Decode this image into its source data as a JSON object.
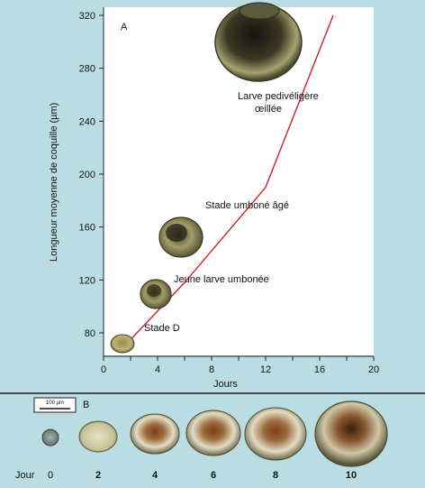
{
  "panel_a": {
    "label": "A",
    "chart_data": {
      "type": "line",
      "xlabel": "Jours",
      "ylabel": "Longueur moyenne de coquille (µm)",
      "xlim": [
        0,
        20
      ],
      "ylim": [
        70,
        320
      ],
      "xticks": [
        0,
        2,
        4,
        6,
        8,
        10,
        12,
        14,
        16,
        18,
        20
      ],
      "yticks": [
        80,
        120,
        160,
        200,
        240,
        280,
        320
      ],
      "grid": false,
      "x": [
        2,
        6,
        12,
        17
      ],
      "y": [
        75,
        118,
        190,
        320
      ],
      "annotations": [
        {
          "text": "Stade D",
          "x": 2,
          "y": 75
        },
        {
          "text": "Jeune larve umbonée",
          "x": 5,
          "y": 112
        },
        {
          "text": "Stade umboné âgé",
          "x": 6,
          "y": 156
        },
        {
          "text": "Larve pedivéligère œillée",
          "x": 15,
          "y": 298
        }
      ],
      "colors": {
        "line": "#d61f1f",
        "background": "#ffffff"
      }
    }
  },
  "panel_b": {
    "label": "B",
    "scale_bar": "100 µm",
    "day_label": "Jour",
    "days": [
      "0",
      "2",
      "4",
      "6",
      "8",
      "10"
    ]
  }
}
